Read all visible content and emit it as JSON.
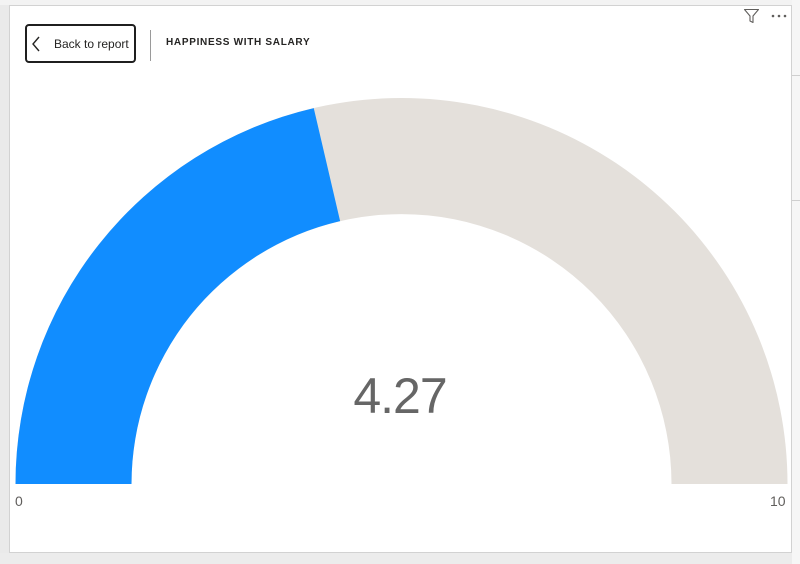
{
  "visual": {
    "back_label": "Back to report",
    "title": "HAPPINESS WITH SALARY",
    "icons": {
      "back": "chevron-left-icon",
      "filter": "filter-icon",
      "more": "more-options-icon"
    }
  },
  "chart_data": {
    "type": "gauge",
    "value": 4.27,
    "value_label": "4.27",
    "min": 0,
    "max": 10,
    "min_label": "0",
    "max_label": "10",
    "fill_color": "#118dff",
    "track_color": "#e4e0db"
  }
}
